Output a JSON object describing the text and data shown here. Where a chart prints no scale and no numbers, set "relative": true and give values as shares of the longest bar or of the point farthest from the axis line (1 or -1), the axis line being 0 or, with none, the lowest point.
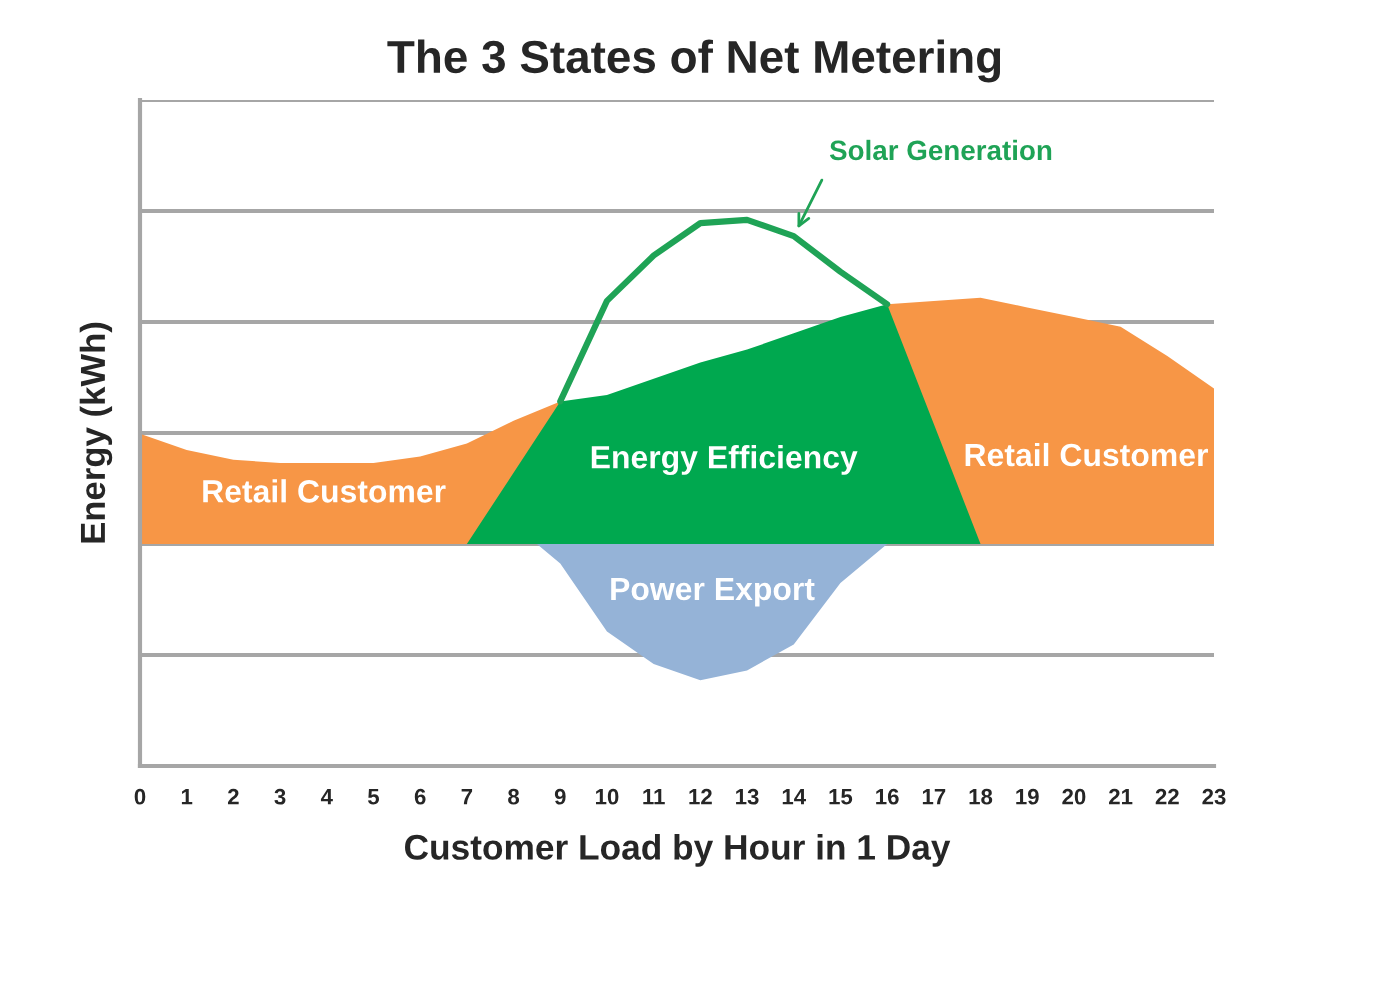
{
  "chart_data": {
    "type": "area",
    "title": "The 3 States of Net Metering",
    "xlabel": "Customer Load by Hour in 1 Day",
    "ylabel": "Energy (kWh)",
    "relative": true,
    "xlim": [
      0,
      23
    ],
    "xticks": [
      0,
      1,
      2,
      3,
      4,
      5,
      6,
      7,
      8,
      9,
      10,
      11,
      12,
      13,
      14,
      15,
      16,
      17,
      18,
      19,
      20,
      21,
      22,
      23
    ],
    "grid": "y",
    "tick_labels": "x",
    "series": [
      {
        "name": "Retail Customer",
        "color": "#f79646",
        "x": [
          0,
          1,
          2,
          3,
          4,
          5,
          6,
          7,
          8,
          9
        ],
        "values": [
          0.34,
          0.29,
          0.26,
          0.25,
          0.25,
          0.25,
          0.27,
          0.31,
          0.38,
          0.44
        ]
      },
      {
        "name": "Retail Customer",
        "color": "#f79646",
        "x": [
          16,
          17,
          18,
          19,
          20,
          21,
          22,
          23
        ],
        "values": [
          0.74,
          0.75,
          0.76,
          0.73,
          0.7,
          0.67,
          0.58,
          0.48
        ]
      },
      {
        "name": "Energy Efficiency",
        "color": "#00a84f",
        "x": [
          7,
          8,
          9,
          10,
          11,
          12,
          13,
          14,
          15,
          16,
          17,
          18
        ],
        "values": [
          0,
          0.22,
          0.44,
          0.46,
          0.51,
          0.56,
          0.6,
          0.65,
          0.7,
          0.74,
          0.37,
          0
        ]
      },
      {
        "name": "Power Export",
        "color": "#95b3d7",
        "x": [
          8.5,
          9,
          10,
          11,
          12,
          13,
          14,
          15,
          16
        ],
        "values": [
          0,
          -0.06,
          -0.27,
          -0.37,
          -0.42,
          -0.39,
          -0.31,
          -0.12,
          0
        ]
      },
      {
        "name": "Solar Generation",
        "type": "line",
        "color": "#1fa356",
        "x": [
          9,
          10,
          11,
          12,
          13,
          14,
          15,
          16
        ],
        "values": [
          0.44,
          0.75,
          0.89,
          0.99,
          1.0,
          0.95,
          0.84,
          0.74
        ]
      }
    ]
  }
}
